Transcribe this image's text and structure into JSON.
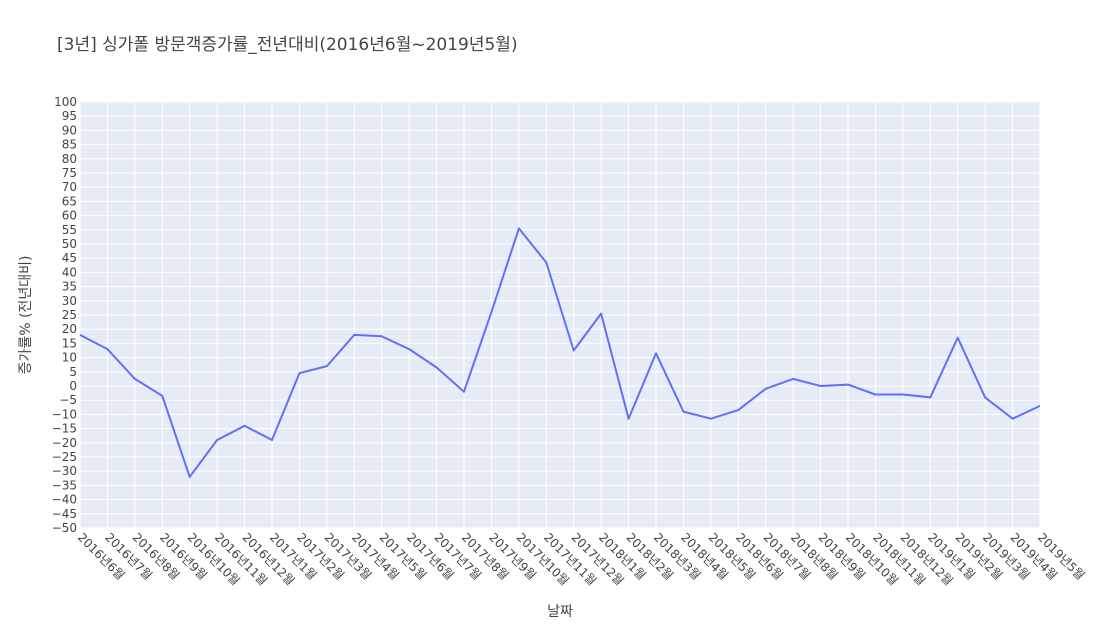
{
  "chart_data": {
    "type": "line",
    "title": "[3년] 싱가폴 방문객증가률_전년대비(2016년6월~2019년5월)",
    "xlabel": "날짜",
    "ylabel": "증가률% (전년대비)",
    "ylim": [
      -50,
      100
    ],
    "ytick_step": 5,
    "grid": true,
    "legend": "none",
    "categories": [
      "2016년6월",
      "2016년7월",
      "2016년8월",
      "2016년9월",
      "2016년10월",
      "2016년11월",
      "2016년12월",
      "2017년1월",
      "2017년2월",
      "2017년3월",
      "2017년4월",
      "2017년5월",
      "2017년6월",
      "2017년7월",
      "2017년8월",
      "2017년9월",
      "2017년10월",
      "2017년11월",
      "2017년12월",
      "2018년1월",
      "2018년2월",
      "2018년3월",
      "2018년4월",
      "2018년5월",
      "2018년6월",
      "2018년7월",
      "2018년8월",
      "2018년9월",
      "2018년10월",
      "2018년11월",
      "2018년12월",
      "2019년1월",
      "2019년2월",
      "2019년3월",
      "2019년4월",
      "2019년5월"
    ],
    "series": [
      {
        "color": "#636efa",
        "values": [
          18,
          13,
          2.5,
          -3.5,
          -32,
          -19,
          -14,
          -19,
          4.5,
          7,
          18,
          17.5,
          13,
          6.5,
          -2,
          26,
          55.5,
          43.5,
          12.5,
          25.5,
          -11.5,
          11.5,
          -9,
          -11.5,
          -8.5,
          -1,
          2.5,
          0,
          0.5,
          -3,
          -3,
          -4,
          17,
          -4,
          -11.5,
          -7
        ]
      }
    ],
    "colors": {
      "plot_background": "#e5ecf6",
      "grid": "#ffffff",
      "text": "#444444"
    }
  }
}
